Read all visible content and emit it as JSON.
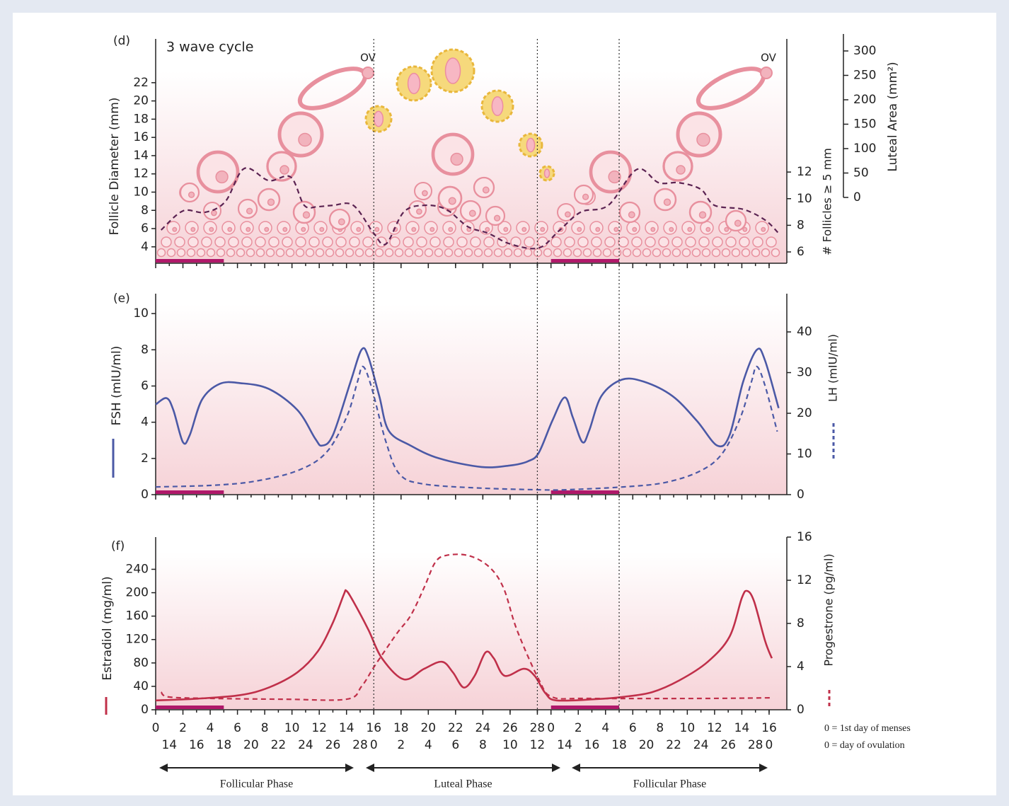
{
  "chart_data": [
    {
      "type": "line",
      "panel_label": "(d)",
      "title": "3 wave cycle",
      "annotations": [
        "OV",
        "OV"
      ],
      "ylabel": "Follicle Diameter (mm)",
      "ylim": [
        2.2,
        26.8
      ],
      "yticks": [
        4,
        6,
        8,
        10,
        12,
        14,
        16,
        18,
        20,
        22
      ],
      "y2label": "# Follicles ≥ 5 mm",
      "y2lim": [
        5.15,
        22
      ],
      "y2ticks": [
        6,
        8,
        10,
        12
      ],
      "y3label": "Luteal Area (mm²)",
      "y3lim": [
        0,
        300
      ],
      "y3ticks": [
        0,
        50,
        100,
        150,
        200,
        250,
        300
      ],
      "xlim": [
        0,
        46.3
      ],
      "series": [
        {
          "color": "#5b2352",
          "dash": true,
          "axis": "y2",
          "x": [
            0.4,
            2.0,
            3.6,
            5.1,
            6.5,
            8.3,
            9.9,
            10.9,
            11.9,
            13.0,
            14.5,
            16.0,
            16.9,
            18.2,
            19.7,
            21.3,
            22.9,
            24.4,
            26.0,
            28.1,
            29.6,
            31.2,
            33.2,
            35.3,
            36.9,
            38.4,
            40.0,
            41.0,
            43.1,
            44.7,
            45.7
          ],
          "values": [
            7.65,
            9.08,
            8.97,
            9.77,
            12.27,
            11.36,
            11.63,
            9.5,
            9.4,
            9.5,
            9.5,
            7.4,
            6.6,
            9.0,
            9.5,
            9.2,
            7.9,
            7.4,
            6.6,
            6.3,
            7.6,
            9.0,
            9.5,
            12.2,
            11.2,
            11.2,
            10.7,
            9.5,
            9.2,
            8.4,
            7.4
          ]
        }
      ]
    },
    {
      "type": "line",
      "panel_label": "(e)",
      "ylabel": "FSH (mIU/ml)",
      "ylim": [
        0,
        11.1
      ],
      "yticks": [
        0,
        2,
        4,
        6,
        8,
        10
      ],
      "y2label": "LH (mIU/ml)",
      "y2lim": [
        0,
        49.4
      ],
      "y2ticks": [
        0,
        10,
        20,
        30,
        40
      ],
      "xlim": [
        0,
        46.3
      ],
      "series": [
        {
          "color": "#4b59a6",
          "dash": false,
          "axis": "y",
          "x": [
            0,
            0.8,
            1.3,
            2.0,
            2.5,
            3.4,
            4.7,
            6.2,
            8.3,
            10.4,
            11.7,
            12.2,
            13.0,
            14.3,
            15.1,
            15.6,
            16.4,
            17.1,
            18.7,
            20.8,
            23.9,
            26.0,
            27.3,
            28.1,
            29.1,
            30.0,
            30.6,
            31.3,
            31.8,
            32.7,
            34.2,
            35.8,
            37.9,
            39.7,
            41.2,
            42.1,
            43.1,
            44.1,
            44.7,
            45.7
          ],
          "values": [
            4.98,
            5.33,
            4.67,
            2.9,
            3.29,
            5.25,
            6.12,
            6.16,
            5.84,
            4.67,
            3.1,
            2.71,
            3.29,
            6.24,
            8.0,
            7.61,
            5.45,
            3.53,
            2.71,
            2.0,
            1.53,
            1.61,
            1.84,
            2.31,
            4.08,
            5.37,
            4.27,
            2.9,
            3.53,
            5.45,
            6.35,
            6.24,
            5.45,
            4.08,
            2.71,
            3.29,
            6.24,
            8.0,
            7.41,
            4.78
          ]
        },
        {
          "color": "#4b59a6",
          "dash": true,
          "axis": "y2",
          "x": [
            0,
            4.2,
            7.3,
            10.4,
            12.5,
            14.0,
            14.8,
            15.2,
            15.8,
            16.9,
            17.9,
            19.7,
            23.9,
            28.1,
            30.1,
            34.3,
            37.4,
            40.0,
            41.6,
            42.9,
            43.7,
            44.1,
            44.7,
            45.6
          ],
          "values": [
            1.9,
            2.3,
            3.3,
            5.9,
            10.3,
            19.0,
            27.7,
            31.5,
            26.8,
            12.9,
            5.0,
            2.6,
            1.6,
            1.2,
            1.2,
            1.9,
            3.0,
            5.9,
            10.3,
            19.0,
            27.7,
            31.5,
            26.8,
            15.5
          ]
        }
      ]
    },
    {
      "type": "line",
      "panel_label": "(f)",
      "ylabel": "Estradiol (mg/ml)",
      "ylim": [
        0,
        295
      ],
      "yticks": [
        0,
        40,
        80,
        120,
        160,
        200,
        240
      ],
      "y2label": "Progestrone (pg/ml)",
      "y2lim": [
        0,
        16
      ],
      "y2ticks": [
        0,
        4,
        8,
        12,
        16
      ],
      "xlim": [
        0,
        46.3
      ],
      "xticks": [
        0,
        2,
        4,
        6,
        8,
        10,
        12,
        14,
        16,
        18,
        20,
        22,
        24,
        26,
        28,
        {
          "value": 29,
          "label": "0"
        },
        {
          "value": 31,
          "label": "2"
        },
        {
          "value": 33,
          "label": "4"
        },
        {
          "value": 35,
          "label": "6"
        },
        {
          "value": 37,
          "label": "8"
        },
        {
          "value": 39,
          "label": "10"
        },
        {
          "value": 41,
          "label": "12"
        },
        {
          "value": 43,
          "label": "14"
        },
        {
          "value": 45,
          "label": "16"
        }
      ],
      "xticks2": [
        {
          "value": 1,
          "label": "14"
        },
        {
          "value": 3,
          "label": "16"
        },
        {
          "value": 5,
          "label": "18"
        },
        {
          "value": 7,
          "label": "20"
        },
        {
          "value": 9,
          "label": "22"
        },
        {
          "value": 11,
          "label": "24"
        },
        {
          "value": 13,
          "label": "26"
        },
        {
          "value": 15,
          "label": "28"
        },
        {
          "value": 16,
          "label": "0"
        },
        {
          "value": 18,
          "label": "2"
        },
        {
          "value": 20,
          "label": "4"
        },
        {
          "value": 22,
          "label": "6"
        },
        {
          "value": 24,
          "label": "8"
        },
        {
          "value": 26,
          "label": "10"
        },
        {
          "value": 28,
          "label": "12"
        },
        {
          "value": 30,
          "label": "14"
        },
        {
          "value": 32,
          "label": "16"
        },
        {
          "value": 34,
          "label": "18"
        },
        {
          "value": 36,
          "label": "20"
        },
        {
          "value": 38,
          "label": "22"
        },
        {
          "value": 40,
          "label": "24"
        },
        {
          "value": 42,
          "label": "26"
        },
        {
          "value": 44,
          "label": "28"
        },
        {
          "value": 45,
          "label": "0"
        }
      ],
      "series": [
        {
          "color": "#c0304a",
          "dash": false,
          "axis": "y",
          "x": [
            0,
            3.1,
            6.2,
            8.3,
            10.4,
            11.9,
            13.0,
            13.8,
            14.0,
            14.5,
            15.6,
            16.6,
            18.2,
            19.7,
            21.0,
            21.8,
            22.6,
            23.4,
            24.2,
            24.8,
            25.6,
            27.0,
            27.8,
            28.6,
            29.4,
            32.2,
            34.3,
            36.4,
            38.4,
            40.5,
            42.1,
            43.0,
            43.4,
            43.9,
            44.7,
            45.2
          ],
          "values": [
            16,
            19,
            25,
            38,
            64,
            100,
            149,
            197,
            203,
            185,
            137,
            88,
            52,
            70,
            82,
            64,
            38,
            58,
            98,
            88,
            58,
            70,
            58,
            28,
            16,
            18,
            22,
            30,
            50,
            82,
            125,
            191,
            203,
            185,
            118,
            88
          ]
        },
        {
          "color": "#c0304a",
          "dash": true,
          "axis": "y2",
          "x": [
            0.4,
            1.0,
            4.2,
            9.4,
            14.0,
            15.1,
            16.1,
            17.7,
            18.7,
            19.7,
            20.5,
            21.3,
            22.9,
            24.4,
            25.5,
            26.5,
            28.1,
            29.1,
            31.7,
            40.5,
            45.2
          ],
          "values": [
            1.64,
            1.18,
            1.05,
            0.98,
            0.98,
            2.16,
            4.13,
            7.08,
            8.72,
            11.34,
            13.64,
            14.3,
            14.3,
            13.31,
            11.34,
            7.41,
            2.82,
            1.18,
            1.05,
            1.05,
            1.11
          ]
        }
      ]
    }
  ],
  "vlines": [
    16,
    28,
    34
  ],
  "menses": [
    [
      0,
      5
    ],
    [
      29,
      34
    ]
  ],
  "menses_color": "#b0186a",
  "phases": [
    "Follicular Phase",
    "Luteal Phase",
    "Follicular Phase"
  ],
  "notes": [
    "0 = 1st day of menses",
    "0 = day of ovulation"
  ]
}
